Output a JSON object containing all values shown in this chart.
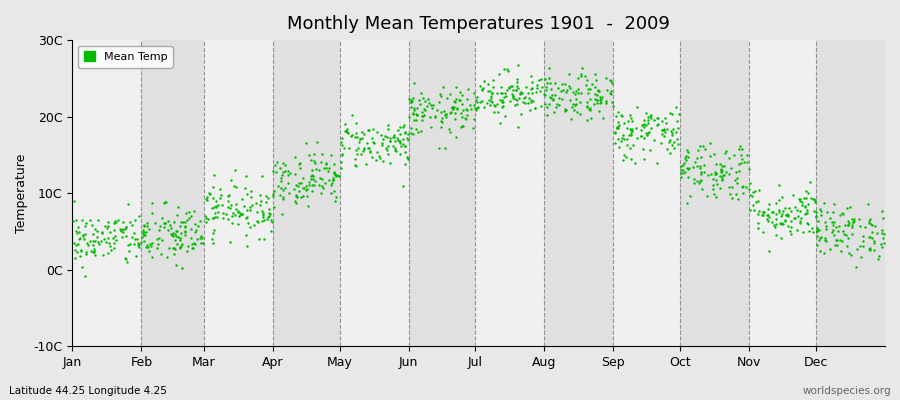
{
  "title": "Monthly Mean Temperatures 1901  -  2009",
  "ylabel": "Temperature",
  "xlabel": "",
  "bg_color": "#e8e8e8",
  "plot_bg_light": "#f0f0f0",
  "plot_bg_dark": "#e0e0e0",
  "dot_color": "#00bb00",
  "dot_size": 3,
  "ylim": [
    -10,
    30
  ],
  "ytick_labels": [
    "-10C",
    "0C",
    "10C",
    "20C",
    "30C"
  ],
  "ytick_values": [
    -10,
    0,
    10,
    20,
    30
  ],
  "month_names": [
    "Jan",
    "Feb",
    "Mar",
    "Apr",
    "May",
    "Jun",
    "Jul",
    "Aug",
    "Sep",
    "Oct",
    "Nov",
    "Dec"
  ],
  "month_days": [
    31,
    28,
    31,
    30,
    31,
    30,
    31,
    31,
    30,
    31,
    30,
    31
  ],
  "monthly_means": [
    4.0,
    4.5,
    8.0,
    12.0,
    16.5,
    20.5,
    23.0,
    22.5,
    18.0,
    13.0,
    7.5,
    5.0
  ],
  "monthly_stds": [
    1.8,
    2.0,
    1.8,
    1.8,
    1.6,
    1.6,
    1.5,
    1.5,
    1.8,
    2.0,
    1.8,
    1.8
  ],
  "n_years": 109,
  "legend_label": "Mean Temp",
  "footer_left": "Latitude 44.25 Longitude 4.25",
  "footer_right": "worldspecies.org",
  "seed": 42
}
